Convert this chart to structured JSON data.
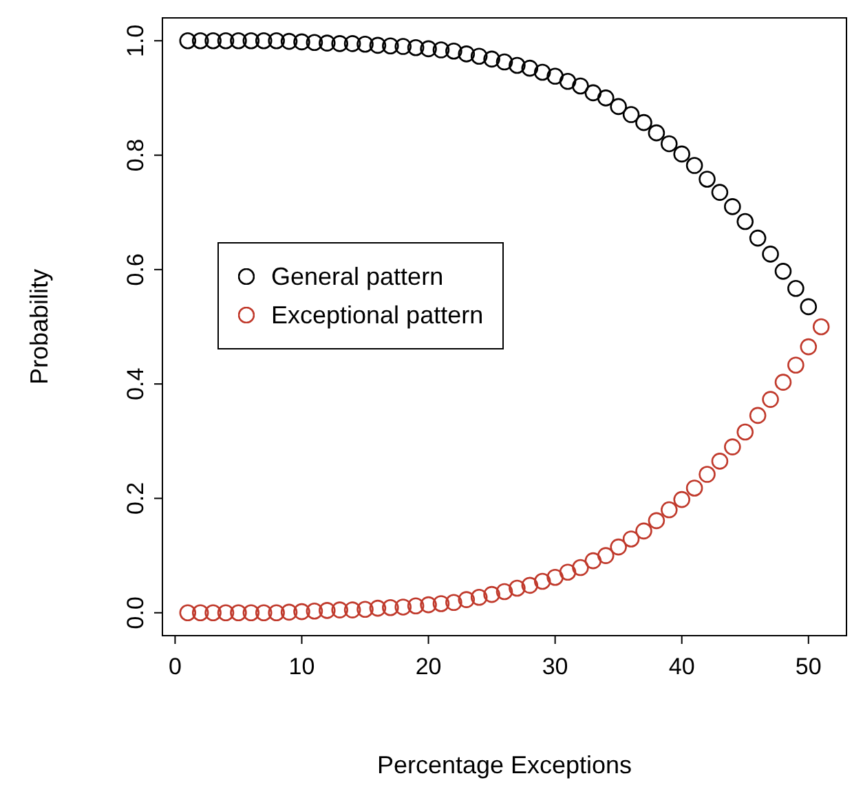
{
  "chart_data": {
    "type": "scatter",
    "xlabel": "Percentage Exceptions",
    "ylabel": "Probability",
    "x": [
      1,
      2,
      3,
      4,
      5,
      6,
      7,
      8,
      9,
      10,
      11,
      12,
      13,
      14,
      15,
      16,
      17,
      18,
      19,
      20,
      21,
      22,
      23,
      24,
      25,
      26,
      27,
      28,
      29,
      30,
      31,
      32,
      33,
      34,
      35,
      36,
      37,
      38,
      39,
      40,
      41,
      42,
      43,
      44,
      45,
      46,
      47,
      48,
      49,
      50,
      51
    ],
    "series": [
      {
        "name": "General pattern",
        "color": "#000000",
        "values": [
          1,
          1,
          1,
          1,
          1,
          1,
          1,
          1,
          0.999,
          0.998,
          0.997,
          0.996,
          0.995,
          0.995,
          0.994,
          0.992,
          0.991,
          0.99,
          0.988,
          0.986,
          0.984,
          0.982,
          0.977,
          0.973,
          0.968,
          0.963,
          0.957,
          0.952,
          0.945,
          0.938,
          0.929,
          0.921,
          0.909,
          0.9,
          0.885,
          0.871,
          0.857,
          0.839,
          0.82,
          0.802,
          0.782,
          0.758,
          0.735,
          0.71,
          0.684,
          0.655,
          0.627,
          0.597,
          0.567,
          0.535,
          null
        ]
      },
      {
        "name": "Exceptional pattern",
        "color": "#c0392b",
        "values": [
          0,
          0,
          0,
          0,
          0,
          0,
          0,
          0,
          0.001,
          0.002,
          0.003,
          0.004,
          0.005,
          0.005,
          0.006,
          0.008,
          0.009,
          0.01,
          0.012,
          0.014,
          0.016,
          0.018,
          0.023,
          0.027,
          0.032,
          0.037,
          0.043,
          0.048,
          0.055,
          0.062,
          0.071,
          0.079,
          0.091,
          0.1,
          0.115,
          0.129,
          0.143,
          0.161,
          0.18,
          0.198,
          0.218,
          0.242,
          0.265,
          0.29,
          0.316,
          0.345,
          0.373,
          0.403,
          0.433,
          0.465,
          0.5
        ]
      }
    ],
    "xlim": [
      -1,
      53
    ],
    "xticks": [
      0,
      10,
      20,
      30,
      40,
      50
    ],
    "ylim": [
      -0.04,
      1.04
    ],
    "yticks": [
      {
        "value": 0,
        "label": "0.0"
      },
      {
        "value": 0.2,
        "label": "0.2"
      },
      {
        "value": 0.4,
        "label": "0.4"
      },
      {
        "value": 0.6,
        "label": "0.6"
      },
      {
        "value": 0.8,
        "label": "0.8"
      },
      {
        "value": 1,
        "label": "1.0"
      }
    ],
    "marker": "circle",
    "grid": false,
    "legend": "left"
  }
}
